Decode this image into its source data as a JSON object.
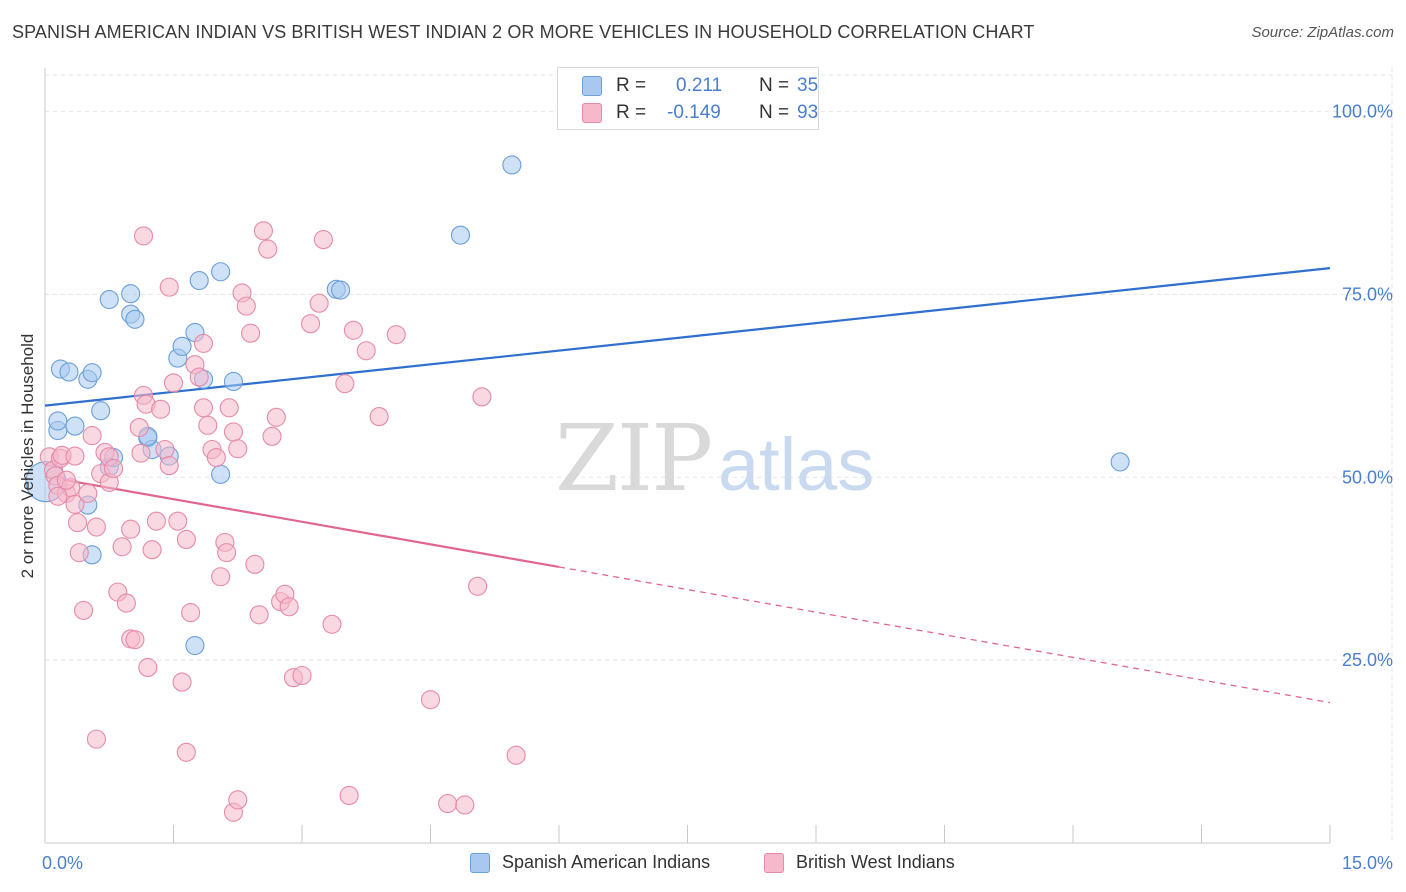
{
  "title": "SPANISH AMERICAN INDIAN VS BRITISH WEST INDIAN 2 OR MORE VEHICLES IN HOUSEHOLD CORRELATION CHART",
  "source": "Source: ZipAtlas.com",
  "watermark": {
    "zip": "ZIP",
    "atlas": "atlas"
  },
  "legend_top": {
    "rows": [
      {
        "r_label": "R =",
        "r_value": "0.211",
        "n_label": "N =",
        "n_value": "35"
      },
      {
        "r_label": "R =",
        "r_value": "-0.149",
        "n_label": "N =",
        "n_value": "93"
      }
    ]
  },
  "legend_bottom": [
    {
      "label": "Spanish American Indians"
    },
    {
      "label": "British West Indians"
    }
  ],
  "colors": {
    "blue_fill": "#a8c8f0",
    "blue_stroke": "#6a9fd8",
    "blue_line": "#2f6fce",
    "pink_fill": "#f6b8cb",
    "pink_stroke": "#e68aa8",
    "pink_line": "#e0668f",
    "tick_label": "#4a7fd0",
    "grid": "#e4e4e4"
  },
  "chart_data": {
    "type": "scatter",
    "title": "SPANISH AMERICAN INDIAN VS BRITISH WEST INDIAN 2 OR MORE VEHICLES IN HOUSEHOLD CORRELATION CHART",
    "xlabel": "",
    "ylabel": "2 or more Vehicles in Household",
    "xlim": [
      0,
      15
    ],
    "ylim": [
      0,
      105
    ],
    "x_tick_labels": [
      "0.0%",
      "15.0%"
    ],
    "y_ticks": [
      25,
      50,
      75,
      100
    ],
    "y_tick_labels": [
      "25.0%",
      "50.0%",
      "75.0%",
      "100.0%"
    ],
    "grid": true,
    "legend_placement": "top-center",
    "series": [
      {
        "name": "Spanish American Indians",
        "color": "#a8c8f0",
        "trend": {
          "x": [
            0,
            15
          ],
          "y": [
            59.8,
            78.6
          ],
          "style": "solid"
        },
        "points": [
          [
            0.01,
            49.4
          ],
          [
            0.15,
            56.4
          ],
          [
            0.15,
            57.7
          ],
          [
            0.18,
            64.8
          ],
          [
            0.28,
            64.4
          ],
          [
            0.35,
            57.0
          ],
          [
            0.5,
            63.4
          ],
          [
            0.65,
            59.1
          ],
          [
            0.75,
            51.4
          ],
          [
            0.8,
            52.7
          ],
          [
            0.75,
            74.3
          ],
          [
            1.0,
            75.1
          ],
          [
            1.0,
            72.3
          ],
          [
            1.05,
            71.6
          ],
          [
            1.2,
            55.4
          ],
          [
            1.25,
            53.8
          ],
          [
            1.45,
            52.9
          ],
          [
            1.55,
            66.3
          ],
          [
            1.6,
            67.9
          ],
          [
            1.75,
            69.8
          ],
          [
            1.8,
            76.9
          ],
          [
            1.85,
            63.4
          ],
          [
            2.05,
            78.1
          ],
          [
            2.2,
            63.1
          ],
          [
            2.05,
            50.4
          ],
          [
            1.75,
            27.0
          ],
          [
            0.55,
            39.4
          ],
          [
            0.5,
            46.2
          ],
          [
            3.4,
            75.7
          ],
          [
            3.45,
            75.6
          ],
          [
            4.85,
            83.1
          ],
          [
            5.45,
            92.7
          ],
          [
            12.55,
            52.1
          ],
          [
            0.55,
            64.3
          ],
          [
            1.2,
            55.6
          ]
        ]
      },
      {
        "name": "British West Indians",
        "color": "#f6b8cb",
        "trend": {
          "x": [
            0,
            15
          ],
          "y": [
            50.1,
            19.2
          ],
          "solid_until": 6.0
        },
        "points": [
          [
            0.05,
            52.8
          ],
          [
            0.1,
            51.0
          ],
          [
            0.12,
            50.2
          ],
          [
            0.15,
            48.9
          ],
          [
            0.18,
            52.6
          ],
          [
            0.2,
            53.0
          ],
          [
            0.25,
            47.8
          ],
          [
            0.3,
            48.6
          ],
          [
            0.35,
            46.3
          ],
          [
            0.38,
            43.8
          ],
          [
            0.4,
            39.7
          ],
          [
            0.45,
            31.8
          ],
          [
            0.5,
            47.8
          ],
          [
            0.55,
            55.7
          ],
          [
            0.6,
            43.2
          ],
          [
            0.65,
            50.5
          ],
          [
            0.7,
            53.4
          ],
          [
            0.75,
            52.8
          ],
          [
            0.75,
            49.3
          ],
          [
            0.8,
            51.2
          ],
          [
            0.85,
            34.3
          ],
          [
            0.9,
            40.5
          ],
          [
            0.95,
            32.8
          ],
          [
            1.0,
            42.9
          ],
          [
            1.0,
            27.9
          ],
          [
            1.05,
            27.8
          ],
          [
            1.1,
            56.8
          ],
          [
            1.12,
            53.3
          ],
          [
            1.15,
            61.2
          ],
          [
            1.18,
            60.0
          ],
          [
            1.2,
            24.0
          ],
          [
            1.25,
            40.1
          ],
          [
            1.3,
            44.0
          ],
          [
            1.35,
            59.3
          ],
          [
            1.4,
            53.8
          ],
          [
            1.45,
            51.6
          ],
          [
            1.5,
            62.9
          ],
          [
            1.55,
            44.0
          ],
          [
            1.6,
            22.0
          ],
          [
            1.65,
            41.5
          ],
          [
            1.7,
            31.5
          ],
          [
            1.75,
            65.4
          ],
          [
            1.8,
            63.7
          ],
          [
            1.85,
            68.3
          ],
          [
            1.9,
            57.1
          ],
          [
            1.95,
            53.8
          ],
          [
            2.0,
            52.7
          ],
          [
            2.05,
            36.4
          ],
          [
            2.1,
            41.1
          ],
          [
            2.12,
            39.7
          ],
          [
            2.15,
            59.5
          ],
          [
            2.2,
            56.2
          ],
          [
            2.25,
            53.9
          ],
          [
            2.3,
            75.2
          ],
          [
            2.35,
            73.4
          ],
          [
            2.4,
            69.7
          ],
          [
            2.45,
            38.1
          ],
          [
            2.5,
            31.2
          ],
          [
            2.55,
            83.7
          ],
          [
            2.6,
            81.2
          ],
          [
            2.65,
            55.6
          ],
          [
            2.7,
            58.2
          ],
          [
            2.75,
            33.0
          ],
          [
            2.8,
            34.0
          ],
          [
            2.85,
            32.3
          ],
          [
            2.9,
            22.6
          ],
          [
            3.0,
            22.9
          ],
          [
            3.1,
            71.0
          ],
          [
            3.2,
            73.8
          ],
          [
            3.25,
            82.5
          ],
          [
            3.35,
            29.9
          ],
          [
            3.5,
            62.8
          ],
          [
            3.6,
            70.1
          ],
          [
            3.75,
            67.3
          ],
          [
            3.9,
            58.3
          ],
          [
            4.1,
            69.5
          ],
          [
            4.5,
            19.6
          ],
          [
            4.7,
            5.4
          ],
          [
            4.9,
            5.2
          ],
          [
            5.05,
            35.1
          ],
          [
            5.1,
            61.0
          ],
          [
            5.5,
            12.0
          ],
          [
            2.2,
            4.2
          ],
          [
            2.25,
            5.9
          ],
          [
            1.65,
            12.4
          ],
          [
            0.6,
            14.2
          ],
          [
            3.55,
            6.5
          ],
          [
            1.15,
            83.0
          ],
          [
            1.45,
            76.0
          ],
          [
            1.85,
            59.5
          ],
          [
            0.35,
            52.9
          ],
          [
            0.25,
            49.6
          ],
          [
            0.15,
            47.4
          ]
        ]
      }
    ]
  }
}
